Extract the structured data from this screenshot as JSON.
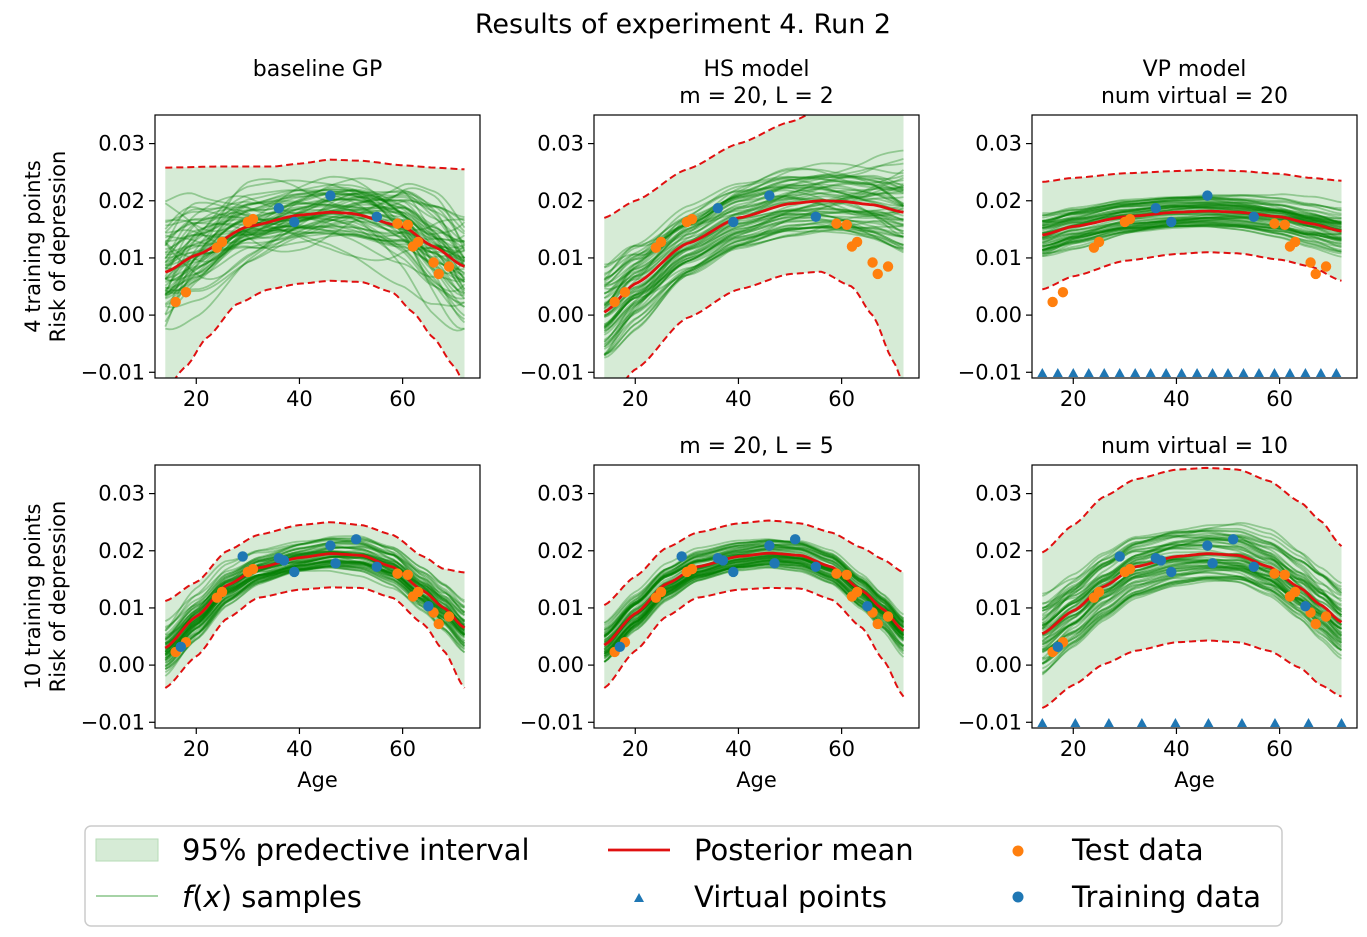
{
  "suptitle": "Results of experiment 4. Run 2",
  "colors": {
    "band": "#d6ebd6",
    "band_edge": "#b6dbb6",
    "samples": "#008000",
    "mean": "#e01010",
    "ci_lines": "#e01010",
    "test": "#ff7f0e",
    "train": "#1f77b4"
  },
  "row_labels": [
    [
      "4 training points",
      "Risk of depression"
    ],
    [
      "10 training points",
      "Risk of depression"
    ]
  ],
  "xlabel": "Age",
  "legend": {
    "band": "95% predective interval",
    "samples_pre": "f",
    "samples_post": " samples",
    "mean": "Posterior mean",
    "virtual": "Virtual points",
    "test": "Test data",
    "train": "Training data"
  },
  "chart_data": [
    {
      "type": "line",
      "row": 0,
      "col": 0,
      "title": [
        "baseline GP"
      ],
      "xlim": [
        12,
        75
      ],
      "ylim": [
        -0.011,
        0.035
      ],
      "xticks": [
        20,
        40,
        60
      ],
      "yticks": [
        -0.01,
        0.0,
        0.01,
        0.02,
        0.03
      ],
      "mean": {
        "x": [
          14,
          20,
          30,
          40,
          46,
          50,
          60,
          66,
          72
        ],
        "y": [
          0.0075,
          0.0105,
          0.0155,
          0.0175,
          0.018,
          0.0178,
          0.0155,
          0.012,
          0.0085
        ]
      },
      "ci_upper": {
        "x": [
          14,
          25,
          35,
          40,
          46,
          52,
          60,
          66,
          72
        ],
        "y": [
          0.0258,
          0.026,
          0.026,
          0.0265,
          0.0272,
          0.027,
          0.0262,
          0.0258,
          0.0255
        ]
      },
      "ci_lower": {
        "x": [
          14,
          18,
          22,
          28,
          34,
          40,
          46,
          52,
          58,
          62,
          66,
          70,
          72
        ],
        "y": [
          -0.013,
          -0.009,
          -0.004,
          0.002,
          0.0045,
          0.0055,
          0.006,
          0.0058,
          0.004,
          0.0005,
          -0.004,
          -0.009,
          -0.012
        ]
      },
      "samples": {
        "count": 65,
        "seed": 11,
        "spread": 0.0045,
        "wobble": 1.6
      },
      "virtual_points": [],
      "test": [
        [
          16,
          0.0023
        ],
        [
          18,
          0.004
        ],
        [
          24,
          0.0118
        ],
        [
          25,
          0.0128
        ],
        [
          30,
          0.0163
        ],
        [
          31,
          0.0168
        ],
        [
          59,
          0.016
        ],
        [
          61,
          0.0158
        ],
        [
          62,
          0.012
        ],
        [
          63,
          0.0128
        ],
        [
          66,
          0.0092
        ],
        [
          67,
          0.0072
        ],
        [
          69,
          0.0085
        ]
      ],
      "train": [
        [
          36,
          0.0187
        ],
        [
          39,
          0.0163
        ],
        [
          46,
          0.0209
        ],
        [
          55,
          0.0172
        ]
      ]
    },
    {
      "type": "line",
      "row": 0,
      "col": 1,
      "title": [
        "HS model",
        "m = 20, L = 2"
      ],
      "xlim": [
        12,
        75
      ],
      "ylim": [
        -0.011,
        0.035
      ],
      "xticks": [
        20,
        40,
        60
      ],
      "yticks": [
        -0.01,
        0.0,
        0.01,
        0.02,
        0.03
      ],
      "mean": {
        "x": [
          14,
          20,
          30,
          40,
          50,
          56,
          60,
          66,
          72
        ],
        "y": [
          0.0005,
          0.0055,
          0.0125,
          0.017,
          0.0195,
          0.02,
          0.0199,
          0.0193,
          0.018
        ]
      },
      "ci_upper": {
        "x": [
          14,
          20,
          30,
          40,
          50,
          56,
          62,
          68,
          72
        ],
        "y": [
          0.017,
          0.02,
          0.0255,
          0.03,
          0.0338,
          0.036,
          0.037,
          0.036,
          0.035
        ]
      },
      "ci_lower": {
        "x": [
          14,
          20,
          30,
          40,
          50,
          56,
          62,
          66,
          70,
          72
        ],
        "y": [
          -0.016,
          -0.0095,
          -0.0005,
          0.0045,
          0.0072,
          0.0076,
          0.005,
          0.0,
          -0.008,
          -0.012
        ]
      },
      "samples": {
        "count": 65,
        "seed": 23,
        "spread": 0.0055,
        "wobble": 0.5
      },
      "virtual_points": [],
      "test": [
        [
          16,
          0.0023
        ],
        [
          18,
          0.004
        ],
        [
          24,
          0.0118
        ],
        [
          25,
          0.0128
        ],
        [
          30,
          0.0163
        ],
        [
          31,
          0.0168
        ],
        [
          59,
          0.016
        ],
        [
          61,
          0.0158
        ],
        [
          62,
          0.012
        ],
        [
          63,
          0.0128
        ],
        [
          66,
          0.0092
        ],
        [
          67,
          0.0072
        ],
        [
          69,
          0.0085
        ]
      ],
      "train": [
        [
          36,
          0.0187
        ],
        [
          39,
          0.0163
        ],
        [
          46,
          0.0209
        ],
        [
          55,
          0.0172
        ]
      ]
    },
    {
      "type": "line",
      "row": 0,
      "col": 2,
      "title": [
        "VP model",
        "num virtual = 20"
      ],
      "xlim": [
        12,
        75
      ],
      "ylim": [
        -0.011,
        0.035
      ],
      "xticks": [
        20,
        40,
        60
      ],
      "yticks": [
        -0.01,
        0.0,
        0.01,
        0.02,
        0.03
      ],
      "mean": {
        "x": [
          14,
          20,
          30,
          40,
          46,
          52,
          60,
          66,
          72
        ],
        "y": [
          0.014,
          0.0155,
          0.0172,
          0.018,
          0.0182,
          0.018,
          0.0172,
          0.016,
          0.0147
        ]
      },
      "ci_upper": {
        "x": [
          14,
          20,
          30,
          40,
          46,
          52,
          60,
          66,
          72
        ],
        "y": [
          0.0233,
          0.024,
          0.0248,
          0.0252,
          0.0254,
          0.0252,
          0.0247,
          0.024,
          0.0235
        ]
      },
      "ci_lower": {
        "x": [
          14,
          20,
          30,
          40,
          46,
          52,
          60,
          66,
          72
        ],
        "y": [
          0.0045,
          0.0068,
          0.0095,
          0.0107,
          0.011,
          0.0108,
          0.0097,
          0.0085,
          0.006
        ]
      },
      "samples": {
        "count": 65,
        "seed": 37,
        "spread": 0.0028,
        "wobble": 0.35
      },
      "virtual_points": [
        14,
        17,
        20,
        23,
        26,
        29,
        32,
        35,
        38,
        41,
        44,
        47,
        50,
        53,
        56,
        59,
        62,
        65,
        68,
        71
      ],
      "test": [
        [
          16,
          0.0023
        ],
        [
          18,
          0.004
        ],
        [
          24,
          0.0118
        ],
        [
          25,
          0.0128
        ],
        [
          30,
          0.0163
        ],
        [
          31,
          0.0168
        ],
        [
          59,
          0.016
        ],
        [
          61,
          0.0158
        ],
        [
          62,
          0.012
        ],
        [
          63,
          0.0128
        ],
        [
          66,
          0.0092
        ],
        [
          67,
          0.0072
        ],
        [
          69,
          0.0085
        ]
      ],
      "train": [
        [
          36,
          0.0187
        ],
        [
          39,
          0.0163
        ],
        [
          46,
          0.0209
        ],
        [
          55,
          0.0172
        ]
      ]
    },
    {
      "type": "line",
      "row": 1,
      "col": 0,
      "title": [],
      "xlim": [
        12,
        75
      ],
      "ylim": [
        -0.011,
        0.035
      ],
      "xticks": [
        20,
        40,
        60
      ],
      "yticks": [
        -0.01,
        0.0,
        0.01,
        0.02,
        0.03
      ],
      "mean": {
        "x": [
          14,
          20,
          26,
          32,
          40,
          46,
          52,
          58,
          64,
          68,
          72
        ],
        "y": [
          0.003,
          0.0085,
          0.014,
          0.017,
          0.0188,
          0.0195,
          0.0192,
          0.0172,
          0.013,
          0.01,
          0.0065
        ]
      },
      "ci_upper": {
        "x": [
          14,
          20,
          26,
          32,
          40,
          46,
          52,
          58,
          64,
          68,
          72
        ],
        "y": [
          0.0112,
          0.0145,
          0.02,
          0.0228,
          0.0245,
          0.025,
          0.0245,
          0.0228,
          0.019,
          0.0168,
          0.0162
        ]
      },
      "ci_lower": {
        "x": [
          14,
          20,
          26,
          32,
          40,
          46,
          52,
          58,
          64,
          68,
          72
        ],
        "y": [
          -0.004,
          0.0015,
          0.0082,
          0.0118,
          0.0132,
          0.0136,
          0.0135,
          0.0118,
          0.0072,
          0.0025,
          -0.004
        ]
      },
      "samples": {
        "count": 65,
        "seed": 41,
        "spread": 0.0028,
        "wobble": 0.7
      },
      "virtual_points": [],
      "test": [
        [
          16,
          0.0023
        ],
        [
          18,
          0.004
        ],
        [
          24,
          0.0118
        ],
        [
          25,
          0.0128
        ],
        [
          30,
          0.0163
        ],
        [
          31,
          0.0168
        ],
        [
          59,
          0.016
        ],
        [
          61,
          0.0158
        ],
        [
          62,
          0.012
        ],
        [
          63,
          0.0128
        ],
        [
          66,
          0.0092
        ],
        [
          67,
          0.0072
        ],
        [
          69,
          0.0085
        ]
      ],
      "train": [
        [
          17,
          0.0032
        ],
        [
          29,
          0.019
        ],
        [
          36,
          0.0187
        ],
        [
          37,
          0.0183
        ],
        [
          39,
          0.0163
        ],
        [
          46,
          0.0209
        ],
        [
          47,
          0.0178
        ],
        [
          51,
          0.022
        ],
        [
          55,
          0.0172
        ],
        [
          65,
          0.0103
        ]
      ]
    },
    {
      "type": "line",
      "row": 1,
      "col": 1,
      "title": [
        "m = 20, L = 5"
      ],
      "xlim": [
        12,
        75
      ],
      "ylim": [
        -0.011,
        0.035
      ],
      "xticks": [
        20,
        40,
        60
      ],
      "yticks": [
        -0.01,
        0.0,
        0.01,
        0.02,
        0.03
      ],
      "mean": {
        "x": [
          14,
          20,
          26,
          32,
          40,
          46,
          52,
          58,
          64,
          68,
          72
        ],
        "y": [
          0.0035,
          0.009,
          0.0142,
          0.0172,
          0.019,
          0.0196,
          0.0192,
          0.0172,
          0.013,
          0.0098,
          0.006
        ]
      },
      "ci_upper": {
        "x": [
          14,
          20,
          26,
          32,
          40,
          46,
          52,
          58,
          64,
          68,
          72
        ],
        "y": [
          0.0105,
          0.0155,
          0.0205,
          0.0232,
          0.0248,
          0.0253,
          0.0248,
          0.0232,
          0.0205,
          0.0185,
          0.0162
        ]
      },
      "ci_lower": {
        "x": [
          14,
          20,
          26,
          32,
          40,
          46,
          52,
          58,
          64,
          68,
          72
        ],
        "y": [
          -0.004,
          0.0025,
          0.0085,
          0.0118,
          0.0132,
          0.0135,
          0.0134,
          0.0115,
          0.0065,
          0.001,
          -0.0055
        ]
      },
      "samples": {
        "count": 65,
        "seed": 53,
        "spread": 0.0026,
        "wobble": 0.35
      },
      "virtual_points": [],
      "test": [
        [
          16,
          0.0023
        ],
        [
          18,
          0.004
        ],
        [
          24,
          0.0118
        ],
        [
          25,
          0.0128
        ],
        [
          30,
          0.0163
        ],
        [
          31,
          0.0168
        ],
        [
          59,
          0.016
        ],
        [
          61,
          0.0158
        ],
        [
          62,
          0.012
        ],
        [
          63,
          0.0128
        ],
        [
          66,
          0.0092
        ],
        [
          67,
          0.0072
        ],
        [
          69,
          0.0085
        ]
      ],
      "train": [
        [
          17,
          0.0032
        ],
        [
          29,
          0.019
        ],
        [
          36,
          0.0187
        ],
        [
          37,
          0.0183
        ],
        [
          39,
          0.0163
        ],
        [
          46,
          0.0209
        ],
        [
          47,
          0.0178
        ],
        [
          51,
          0.022
        ],
        [
          55,
          0.0172
        ],
        [
          65,
          0.0103
        ]
      ]
    },
    {
      "type": "line",
      "row": 1,
      "col": 2,
      "title": [
        "num virtual = 10"
      ],
      "xlim": [
        12,
        75
      ],
      "ylim": [
        -0.011,
        0.035
      ],
      "xticks": [
        20,
        40,
        60
      ],
      "yticks": [
        -0.01,
        0.0,
        0.01,
        0.02,
        0.03
      ],
      "mean": {
        "x": [
          14,
          20,
          26,
          32,
          40,
          46,
          52,
          58,
          64,
          68,
          72
        ],
        "y": [
          0.0055,
          0.0095,
          0.0138,
          0.0172,
          0.019,
          0.0195,
          0.0192,
          0.0172,
          0.0135,
          0.0105,
          0.0075
        ]
      },
      "ci_upper": {
        "x": [
          14,
          20,
          26,
          32,
          40,
          46,
          52,
          58,
          64,
          68,
          72
        ],
        "y": [
          0.0197,
          0.0245,
          0.0295,
          0.0325,
          0.0342,
          0.0345,
          0.0342,
          0.0322,
          0.0285,
          0.0252,
          0.0208
        ]
      },
      "ci_lower": {
        "x": [
          14,
          20,
          26,
          32,
          40,
          46,
          52,
          58,
          64,
          68,
          72
        ],
        "y": [
          -0.0075,
          -0.0035,
          0.0002,
          0.0025,
          0.004,
          0.0043,
          0.004,
          0.0025,
          -0.0005,
          -0.0035,
          -0.0055
        ]
      },
      "samples": {
        "count": 65,
        "seed": 67,
        "spread": 0.0048,
        "wobble": 0.35
      },
      "virtual_points": [
        14,
        20.4,
        26.9,
        33.3,
        39.8,
        46.2,
        52.7,
        59.1,
        65.6,
        72
      ],
      "test": [
        [
          16,
          0.0023
        ],
        [
          18,
          0.004
        ],
        [
          24,
          0.0118
        ],
        [
          25,
          0.0128
        ],
        [
          30,
          0.0163
        ],
        [
          31,
          0.0168
        ],
        [
          59,
          0.016
        ],
        [
          61,
          0.0158
        ],
        [
          62,
          0.012
        ],
        [
          63,
          0.0128
        ],
        [
          66,
          0.0092
        ],
        [
          67,
          0.0072
        ],
        [
          69,
          0.0085
        ]
      ],
      "train": [
        [
          17,
          0.0032
        ],
        [
          29,
          0.019
        ],
        [
          36,
          0.0187
        ],
        [
          37,
          0.0183
        ],
        [
          39,
          0.0163
        ],
        [
          46,
          0.0209
        ],
        [
          47,
          0.0178
        ],
        [
          51,
          0.022
        ],
        [
          55,
          0.0172
        ],
        [
          65,
          0.0103
        ]
      ]
    }
  ]
}
